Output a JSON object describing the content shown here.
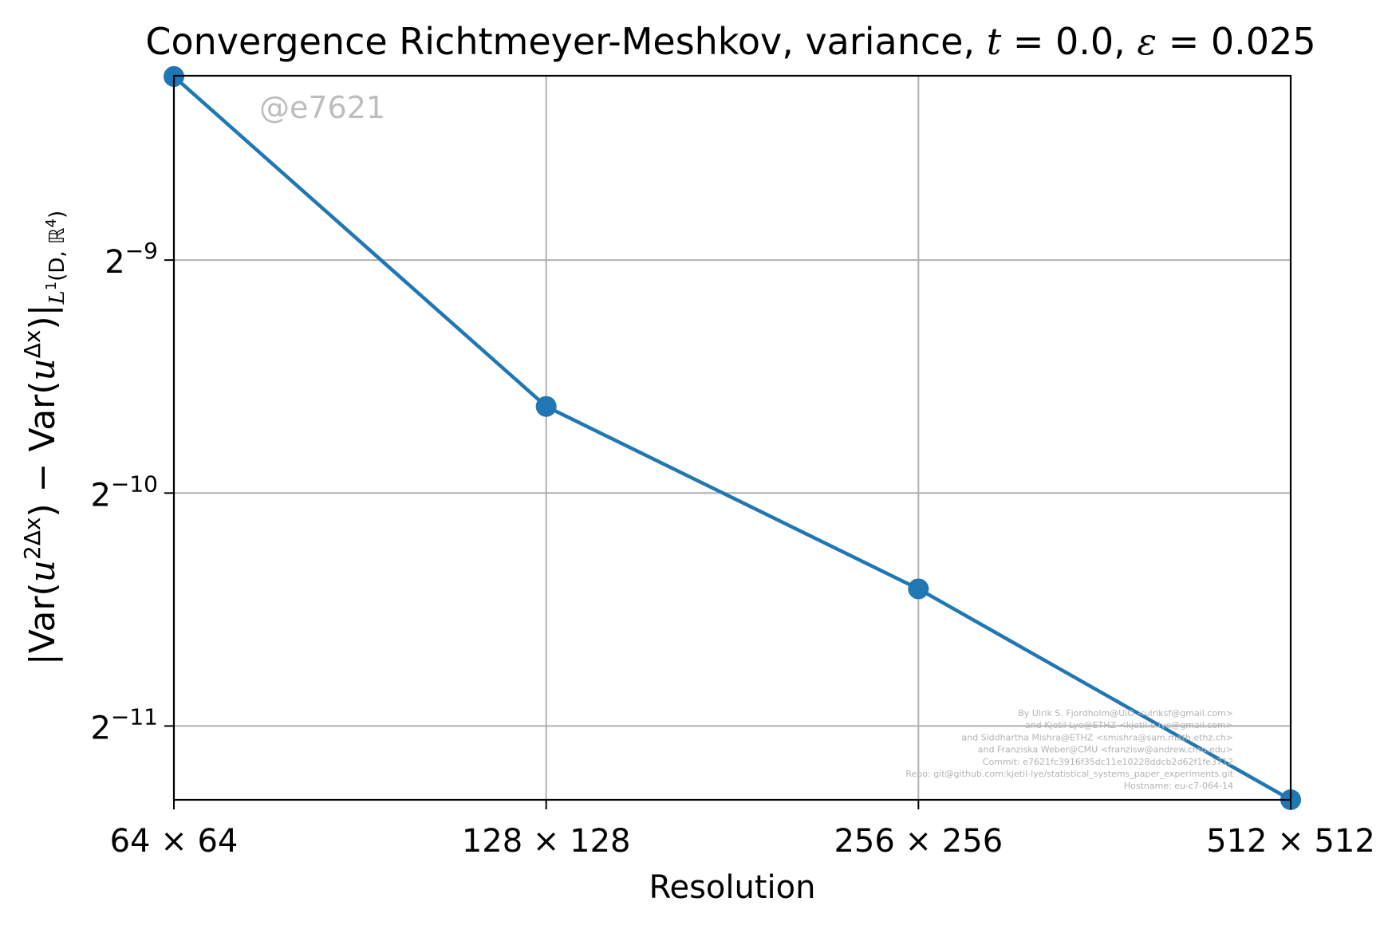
{
  "chart_data": {
    "type": "line",
    "title": {
      "prefix": "Convergence Richtmeyer-Meshkov, variance, ",
      "t_symbol": "t",
      "t_eq": " = 0.0, ",
      "eps_symbol": "ε",
      "eps_eq": " = 0.025"
    },
    "xlabel": "Resolution",
    "ylabel": {
      "a": "|Var(",
      "b": "u",
      "c": "2Δx",
      "d": ") − Var(",
      "e": "u",
      "f": "Δx",
      "g": ")|",
      "h": "L",
      "i": "1",
      "j": "(D, ℝ",
      "k": "4",
      "l": ")"
    },
    "x_scale": "log2",
    "y_scale": "log2",
    "categories": [
      "64",
      "128",
      "256",
      "512"
    ],
    "x_tick_labels": [
      {
        "n": "64",
        "times": "×",
        "m": "64"
      },
      {
        "n": "128",
        "times": "×",
        "m": "128"
      },
      {
        "n": "256",
        "times": "×",
        "m": "256"
      },
      {
        "n": "512",
        "times": "×",
        "m": "512"
      }
    ],
    "x_values": [
      64,
      128,
      256,
      512
    ],
    "y_ticks": [
      {
        "base": "2",
        "exp": "−9",
        "value": 0.001953125
      },
      {
        "base": "2",
        "exp": "−10",
        "value": 0.0009765625
      },
      {
        "base": "2",
        "exp": "−11",
        "value": 0.00048828125
      }
    ],
    "ylim": [
      0.000392,
      0.00338
    ],
    "series": [
      {
        "color": "#1f77b4",
        "marker": "circle",
        "values": [
          0.0033725,
          0.0012636,
          0.00073433,
          0.00039212
        ]
      }
    ],
    "grid": true,
    "legend": "none"
  },
  "watermark": "@e7621",
  "credits": [
    "By Ulrik S. Fjordholm@UiO <ulriksf@gmail.com>",
    "and Kjetil Lye@ETHZ <kjetil.o.lye@gmail.com>",
    "and Siddhartha Mishra@ETHZ <smishra@sam.math.ethz.ch>",
    "and Franziska Weber@CMU <franzisw@andrew.cmu.edu>",
    "Commit: e7621fc3916f35dc11e10228ddcb2d62f1fe3712",
    "Repo: git@github.com:kjetil-lye/statistical_systems_paper_experiments.git",
    "Hostname: eu-c7-064-14"
  ],
  "colors": {
    "series": "#1f77b4",
    "grid": "#b0b0b0",
    "watermark": "#bdbdbd",
    "credits": "#b3b3b3"
  }
}
